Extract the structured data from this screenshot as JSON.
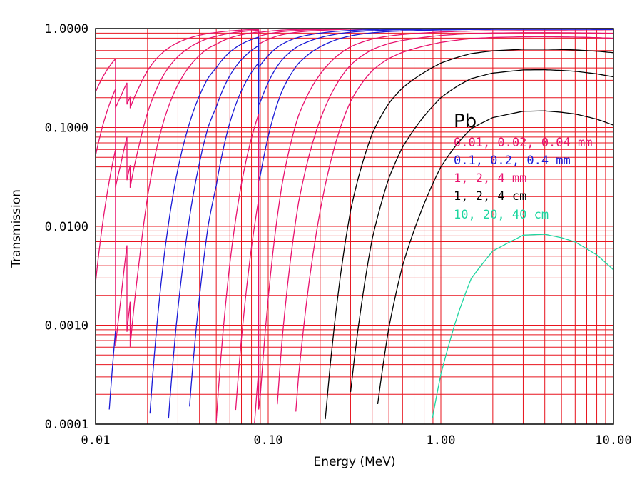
{
  "chart_data": {
    "type": "line",
    "title": "",
    "xlabel": "Energy (MeV)",
    "ylabel": "Transmission",
    "xscale": "log",
    "yscale": "log",
    "xlim": [
      0.01,
      10.0
    ],
    "ylim": [
      0.0001,
      1.0
    ],
    "x_ticks": [
      {
        "value": 0.01,
        "label": "0.01"
      },
      {
        "value": 0.1,
        "label": "0.10"
      },
      {
        "value": 1.0,
        "label": "1.00"
      },
      {
        "value": 10.0,
        "label": "10.00"
      }
    ],
    "y_ticks": [
      {
        "value": 0.0001,
        "label": "0.0001"
      },
      {
        "value": 0.001,
        "label": "0.0010"
      },
      {
        "value": 0.01,
        "label": "0.0100"
      },
      {
        "value": 0.1,
        "label": "0.1000"
      },
      {
        "value": 1.0,
        "label": "1.0000"
      }
    ],
    "grid": true,
    "grid_color": "#e8141e",
    "material_label": "Pb",
    "legend_placement": "right-center",
    "legend": [
      {
        "label": "0.01, 0.02, 0.04 mm",
        "color": "#e8126e"
      },
      {
        "label": "0.1, 0.2, 0.4 mm",
        "color": "#1a1ad6"
      },
      {
        "label": "1, 2, 4 mm",
        "color": "#e8126e"
      },
      {
        "label": "1, 2, 4 cm",
        "color": "#000000"
      },
      {
        "label": "10, 20, 40 cm",
        "color": "#1ed6a0"
      }
    ],
    "series": [
      {
        "group": "0.01, 0.02, 0.04 mm",
        "thickness_cm": 0.001,
        "color": "#e8126e"
      },
      {
        "group": "0.01, 0.02, 0.04 mm",
        "thickness_cm": 0.002,
        "color": "#e8126e"
      },
      {
        "group": "0.01, 0.02, 0.04 mm",
        "thickness_cm": 0.004,
        "color": "#e8126e"
      },
      {
        "group": "0.1, 0.2, 0.4 mm",
        "thickness_cm": 0.01,
        "color": "#1a1ad6"
      },
      {
        "group": "0.1, 0.2, 0.4 mm",
        "thickness_cm": 0.02,
        "color": "#1a1ad6"
      },
      {
        "group": "0.1, 0.2, 0.4 mm",
        "thickness_cm": 0.04,
        "color": "#1a1ad6"
      },
      {
        "group": "1, 2, 4 mm",
        "thickness_cm": 0.1,
        "color": "#e8126e"
      },
      {
        "group": "1, 2, 4 mm",
        "thickness_cm": 0.2,
        "color": "#e8126e"
      },
      {
        "group": "1, 2, 4 mm",
        "thickness_cm": 0.4,
        "color": "#e8126e"
      },
      {
        "group": "1, 2, 4 cm",
        "thickness_cm": 1,
        "color": "#000000"
      },
      {
        "group": "1, 2, 4 cm",
        "thickness_cm": 2,
        "color": "#000000"
      },
      {
        "group": "1, 2, 4 cm",
        "thickness_cm": 4,
        "color": "#000000"
      },
      {
        "group": "10, 20, 40 cm",
        "thickness_cm": 10,
        "color": "#1ed6a0"
      },
      {
        "group": "10, 20, 40 cm",
        "thickness_cm": 20,
        "color": "#1ed6a0"
      },
      {
        "group": "10, 20, 40 cm",
        "thickness_cm": 40,
        "color": "#1ed6a0"
      }
    ],
    "attenuation_mu_cm": {
      "energy_MeV": [
        0.01,
        0.011,
        0.012,
        0.013,
        0.01304,
        0.01304,
        0.014,
        0.015,
        0.0152,
        0.0152,
        0.0155,
        0.01586,
        0.01586,
        0.016,
        0.017,
        0.018,
        0.02,
        0.022,
        0.025,
        0.028,
        0.03,
        0.035,
        0.04,
        0.045,
        0.05,
        0.06,
        0.07,
        0.08,
        0.085,
        0.088,
        0.088,
        0.09,
        0.1,
        0.12,
        0.15,
        0.2,
        0.3,
        0.4,
        0.5,
        0.6,
        0.8,
        1.0,
        1.25,
        1.5,
        2.0,
        3.0,
        4.0,
        5.0,
        6.0,
        8.0,
        10.0
      ],
      "mu": [
        1478,
        1130,
        887,
        710,
        704,
        1849,
        1577,
        1310,
        1262,
        1765,
        1680,
        1590,
        1853,
        1810,
        1546,
        1333,
        980,
        750,
        527,
        391,
        326,
        220,
        156,
        114,
        91.4,
        54.6,
        36.1,
        25.5,
        21.8,
        19.9,
        88.7,
        85.6,
        62.8,
        36.5,
        20.2,
        10.6,
        4.23,
        2.45,
        1.74,
        1.38,
        1.02,
        0.805,
        0.668,
        0.582,
        0.518,
        0.481,
        0.479,
        0.487,
        0.497,
        0.527,
        0.562
      ]
    }
  }
}
